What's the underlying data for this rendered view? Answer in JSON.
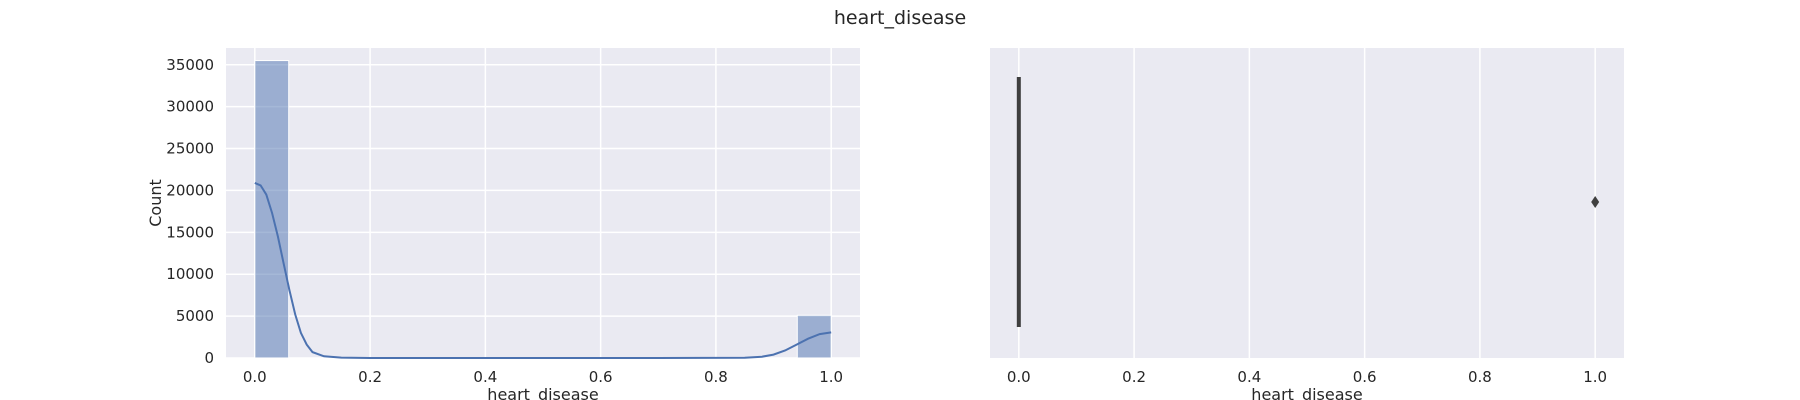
{
  "figure": {
    "title": "heart_disease"
  },
  "colors": {
    "axes_bg": "#eaeaf2",
    "grid": "#ffffff",
    "bar_fill": "#4c72b0",
    "kde_line": "#4c72b0",
    "box_line": "#3f3f3f"
  },
  "chart_data": [
    {
      "type": "bar",
      "subtype": "histogram-with-kde",
      "xlabel": "heart_disease",
      "ylabel": "Count",
      "xlim": [
        -0.05,
        1.05
      ],
      "ylim": [
        0,
        37000
      ],
      "grid": true,
      "x_ticks": [
        0.0,
        0.2,
        0.4,
        0.6,
        0.8,
        1.0
      ],
      "x_tick_labels": [
        "0.0",
        "0.2",
        "0.4",
        "0.6",
        "0.8",
        "1.0"
      ],
      "y_ticks": [
        0,
        5000,
        10000,
        15000,
        20000,
        25000,
        30000,
        35000
      ],
      "y_tick_labels": [
        "0",
        "5000",
        "10000",
        "15000",
        "20000",
        "25000",
        "30000",
        "35000"
      ],
      "bins": [
        {
          "x0": 0.0,
          "x1": 0.0588,
          "count": 35500
        },
        {
          "x0": 0.9412,
          "x1": 1.0,
          "count": 5100
        }
      ],
      "kde": {
        "x": [
          0.0,
          0.01,
          0.02,
          0.03,
          0.04,
          0.05,
          0.06,
          0.07,
          0.08,
          0.09,
          0.1,
          0.12,
          0.15,
          0.2,
          0.3,
          0.5,
          0.7,
          0.85,
          0.88,
          0.9,
          0.92,
          0.94,
          0.96,
          0.98,
          1.0
        ],
        "y": [
          20900,
          20600,
          19500,
          17300,
          14500,
          11300,
          8100,
          5200,
          3000,
          1600,
          700,
          200,
          50,
          5,
          0,
          0,
          0,
          20,
          150,
          400,
          900,
          1600,
          2300,
          2850,
          3050
        ]
      }
    },
    {
      "type": "box",
      "xlabel": "heart_disease",
      "xlim": [
        -0.05,
        1.05
      ],
      "grid": true,
      "x_ticks": [
        0.0,
        0.2,
        0.4,
        0.6,
        0.8,
        1.0
      ],
      "x_tick_labels": [
        "0.0",
        "0.2",
        "0.4",
        "0.6",
        "0.8",
        "1.0"
      ],
      "q1": 0.0,
      "median": 0.0,
      "q3": 0.0,
      "whisker_low": 0.0,
      "whisker_high": 0.0,
      "outliers": [
        1.0
      ]
    }
  ]
}
